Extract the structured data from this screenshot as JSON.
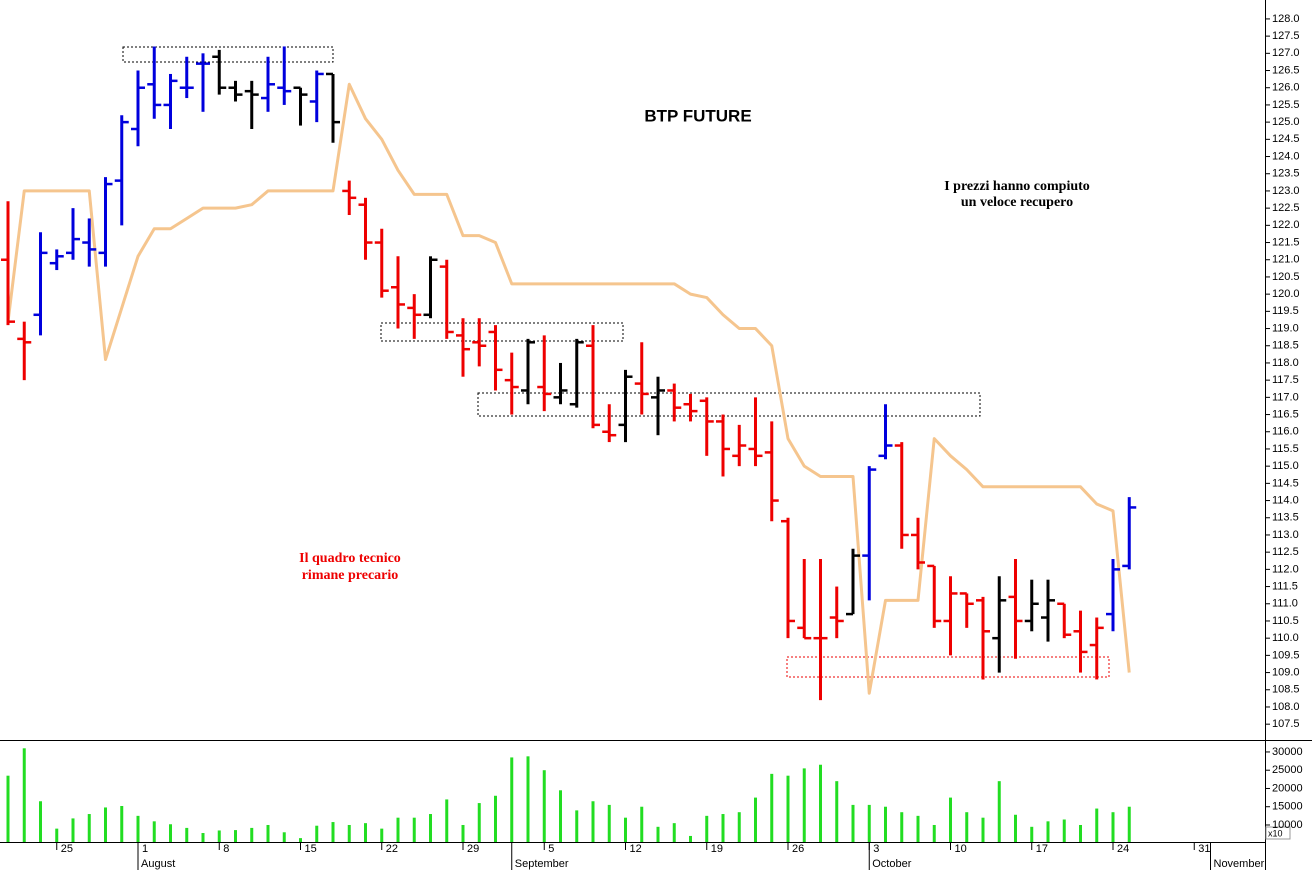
{
  "chart_data": [
    {
      "type": "ohlc",
      "title": "BTP FUTURE",
      "annotations": [
        [
          "I prezzi hanno compiuto",
          "un veloce recupero"
        ],
        [
          "Il quadro tecnico",
          "rimane precario"
        ]
      ],
      "open": [
        121.0,
        118.7,
        119.4,
        120.9,
        121.2,
        121.5,
        121.2,
        123.3,
        124.8,
        126.1,
        125.5,
        126.0,
        126.7,
        126.9,
        126.0,
        125.9,
        125.7,
        126.0,
        126.0,
        125.6,
        126.4,
        123.0,
        122.6,
        121.5,
        120.2,
        119.6,
        119.4,
        120.8,
        118.8,
        118.6,
        118.9,
        117.5,
        117.2,
        117.3,
        117.0,
        116.8,
        118.5,
        116.0,
        116.2,
        117.4,
        117.0,
        117.2,
        116.8,
        116.9,
        116.3,
        115.3,
        115.5,
        115.4,
        113.4,
        110.3,
        110.0,
        110.6,
        110.7,
        112.4,
        115.3,
        115.6,
        113.0,
        112.1,
        110.5,
        111.3,
        111.1,
        110.0,
        111.2,
        110.5,
        110.6,
        111.0,
        110.2,
        109.8,
        110.7,
        112.1,
        null,
        null,
        null,
        null,
        null,
        null,
        null,
        null
      ],
      "high": [
        122.7,
        119.2,
        121.8,
        121.3,
        122.5,
        122.2,
        123.4,
        125.2,
        126.5,
        127.2,
        126.4,
        126.9,
        127.0,
        127.1,
        126.2,
        126.2,
        126.9,
        127.2,
        126.0,
        126.5,
        126.4,
        123.3,
        122.8,
        121.9,
        121.1,
        120.0,
        121.1,
        121.0,
        119.3,
        119.3,
        119.1,
        118.3,
        118.7,
        118.8,
        118.0,
        118.7,
        119.1,
        116.8,
        117.8,
        118.6,
        117.6,
        117.4,
        117.1,
        117.0,
        116.5,
        116.2,
        117.0,
        116.3,
        113.5,
        112.3,
        112.3,
        111.5,
        112.6,
        115.0,
        116.8,
        115.7,
        113.5,
        112.1,
        111.8,
        111.3,
        111.2,
        111.8,
        112.3,
        111.7,
        111.7,
        111.0,
        110.8,
        110.6,
        112.3,
        114.1,
        null,
        null,
        null,
        null,
        null,
        null,
        null,
        null
      ],
      "low": [
        119.1,
        117.5,
        118.8,
        120.7,
        121.0,
        120.8,
        120.8,
        122.0,
        124.3,
        125.1,
        124.8,
        125.7,
        125.3,
        125.8,
        125.6,
        124.8,
        125.3,
        125.5,
        124.9,
        125.0,
        124.4,
        122.3,
        121.0,
        119.9,
        119.0,
        118.7,
        119.3,
        118.7,
        117.6,
        117.9,
        117.2,
        116.5,
        116.8,
        116.6,
        116.8,
        116.7,
        116.1,
        115.7,
        115.7,
        116.5,
        115.9,
        116.3,
        116.3,
        115.3,
        114.7,
        115.0,
        115.0,
        113.4,
        110.0,
        110.0,
        108.2,
        110.0,
        110.7,
        111.1,
        115.2,
        112.6,
        112.0,
        110.3,
        109.5,
        110.3,
        108.8,
        109.0,
        109.4,
        110.2,
        109.9,
        110.0,
        109.0,
        108.8,
        110.2,
        112.0,
        null,
        null,
        null,
        null,
        null,
        null,
        null,
        null
      ],
      "close": [
        119.2,
        118.6,
        121.2,
        121.1,
        121.6,
        121.3,
        123.2,
        125.0,
        126.0,
        125.5,
        126.2,
        126.0,
        126.7,
        126.0,
        125.8,
        125.8,
        126.1,
        125.9,
        125.8,
        126.4,
        125.0,
        122.8,
        121.5,
        120.1,
        119.7,
        119.4,
        121.0,
        118.9,
        118.4,
        118.5,
        117.8,
        117.3,
        118.6,
        117.1,
        117.2,
        118.6,
        116.2,
        115.9,
        117.6,
        117.1,
        117.2,
        116.7,
        116.6,
        116.3,
        115.5,
        115.6,
        115.3,
        114.0,
        110.5,
        110.0,
        110.0,
        110.5,
        112.4,
        114.9,
        115.6,
        113.0,
        112.2,
        110.5,
        111.3,
        111.0,
        110.2,
        111.1,
        110.5,
        111.0,
        111.1,
        110.1,
        109.6,
        110.3,
        112.0,
        113.8,
        null,
        null,
        null,
        null,
        null,
        null,
        null,
        null
      ],
      "bar_colors": [
        "#ee0000",
        "#ee0000",
        "#0000dd",
        "#0000dd",
        "#0000dd",
        "#0000dd",
        "#0000dd",
        "#0000dd",
        "#0000dd",
        "#0000dd",
        "#0000dd",
        "#0000dd",
        "#0000dd",
        "#000000",
        "#000000",
        "#000000",
        "#0000dd",
        "#0000dd",
        "#000000",
        "#0000dd",
        "#000000",
        "#ee0000",
        "#ee0000",
        "#ee0000",
        "#ee0000",
        "#ee0000",
        "#000000",
        "#ee0000",
        "#ee0000",
        "#ee0000",
        "#ee0000",
        "#ee0000",
        "#000000",
        "#ee0000",
        "#000000",
        "#000000",
        "#ee0000",
        "#ee0000",
        "#000000",
        "#ee0000",
        "#000000",
        "#ee0000",
        "#ee0000",
        "#ee0000",
        "#ee0000",
        "#ee0000",
        "#ee0000",
        "#ee0000",
        "#ee0000",
        "#ee0000",
        "#ee0000",
        "#ee0000",
        "#000000",
        "#0000dd",
        "#0000dd",
        "#ee0000",
        "#ee0000",
        "#ee0000",
        "#ee0000",
        "#ee0000",
        "#ee0000",
        "#000000",
        "#ee0000",
        "#000000",
        "#000000",
        "#ee0000",
        "#ee0000",
        "#ee0000",
        "#0000dd",
        "#0000dd",
        null,
        null,
        null,
        null,
        null,
        null,
        null,
        null
      ],
      "overlay": {
        "color": "#f5c58e",
        "values": [
          119.2,
          123.0,
          123.0,
          123.0,
          123.0,
          123.0,
          118.1,
          119.6,
          121.1,
          121.9,
          121.9,
          122.2,
          122.5,
          122.5,
          122.5,
          122.6,
          123.0,
          123.0,
          123.0,
          123.0,
          123.0,
          126.1,
          125.1,
          124.5,
          123.6,
          122.9,
          122.9,
          122.9,
          121.7,
          121.7,
          121.5,
          120.3,
          120.3,
          120.3,
          120.3,
          120.3,
          120.3,
          120.3,
          120.3,
          120.3,
          120.3,
          120.3,
          120.0,
          119.9,
          119.4,
          119.0,
          119.0,
          118.5,
          115.8,
          115.0,
          114.7,
          114.7,
          114.7,
          108.4,
          111.1,
          111.1,
          111.1,
          115.8,
          115.3,
          114.9,
          114.4,
          114.4,
          114.4,
          114.4,
          114.4,
          114.4,
          114.4,
          113.9,
          113.7,
          109.0,
          null,
          null,
          null,
          null,
          null,
          null,
          null,
          null
        ]
      },
      "ylim": [
        107.04,
        128.55
      ],
      "yticks": [
        107.5,
        {
          "value": 108,
          "label": "108.0"
        },
        108.5,
        {
          "value": 109,
          "label": "109.0"
        },
        109.5,
        {
          "value": 110,
          "label": "110.0"
        },
        110.5,
        {
          "value": 111,
          "label": "111.0"
        },
        111.5,
        {
          "value": 112,
          "label": "112.0"
        },
        112.5,
        {
          "value": 113,
          "label": "113.0"
        },
        113.5,
        {
          "value": 114,
          "label": "114.0"
        },
        114.5,
        {
          "value": 115,
          "label": "115.0"
        },
        115.5,
        {
          "value": 116,
          "label": "116.0"
        },
        116.5,
        {
          "value": 117,
          "label": "117.0"
        },
        117.5,
        {
          "value": 118,
          "label": "118.0"
        },
        118.5,
        {
          "value": 119,
          "label": "119.0"
        },
        119.5,
        {
          "value": 120,
          "label": "120.0"
        },
        120.5,
        {
          "value": 121,
          "label": "121.0"
        },
        121.5,
        {
          "value": 122,
          "label": "122.0"
        },
        122.5,
        {
          "value": 123,
          "label": "123.0"
        },
        123.5,
        {
          "value": 124,
          "label": "124.0"
        },
        124.5,
        {
          "value": 125,
          "label": "125.0"
        },
        125.5,
        {
          "value": 126,
          "label": "126.0"
        },
        126.5,
        {
          "value": 127,
          "label": "127.0"
        },
        127.5,
        {
          "value": 128,
          "label": "128.0"
        }
      ]
    },
    {
      "type": "bar",
      "color": "#22dd22",
      "units_label": "x10",
      "categories": [
        null,
        null,
        null,
        "25",
        null,
        null,
        null,
        null,
        "1",
        null,
        null,
        null,
        null,
        "8",
        null,
        null,
        null,
        null,
        "15",
        null,
        null,
        null,
        null,
        "22",
        null,
        null,
        null,
        null,
        "29",
        null,
        null,
        null,
        null,
        "5",
        null,
        null,
        null,
        null,
        "12",
        null,
        null,
        null,
        null,
        "19",
        null,
        null,
        null,
        null,
        "26",
        null,
        null,
        null,
        null,
        "3",
        null,
        null,
        null,
        null,
        "10",
        null,
        null,
        null,
        null,
        "17",
        null,
        null,
        null,
        null,
        "24",
        null,
        null,
        null,
        null,
        "31",
        null,
        null,
        null,
        null
      ],
      "months": [
        null,
        null,
        null,
        null,
        null,
        null,
        null,
        null,
        "August",
        null,
        null,
        null,
        null,
        null,
        null,
        null,
        null,
        null,
        null,
        null,
        null,
        null,
        null,
        null,
        null,
        null,
        null,
        null,
        null,
        null,
        null,
        "September",
        null,
        null,
        null,
        null,
        null,
        null,
        null,
        null,
        null,
        null,
        null,
        null,
        null,
        null,
        null,
        null,
        null,
        null,
        null,
        null,
        null,
        "October",
        null,
        null,
        null,
        null,
        null,
        null,
        null,
        null,
        null,
        null,
        null,
        null,
        null,
        null,
        null,
        null,
        null,
        null,
        null,
        null,
        "November",
        null,
        null,
        null
      ],
      "values": [
        23500,
        31000,
        16500,
        9000,
        11800,
        13000,
        14800,
        15200,
        12500,
        11000,
        10200,
        9200,
        7800,
        8500,
        8600,
        9200,
        10000,
        8000,
        6400,
        9800,
        10800,
        10000,
        10500,
        9000,
        12000,
        12000,
        13000,
        17000,
        10000,
        16000,
        18000,
        28500,
        28800,
        25000,
        19500,
        14000,
        16500,
        15500,
        12000,
        15000,
        9500,
        10500,
        7000,
        12500,
        13000,
        13500,
        17500,
        24000,
        23500,
        25500,
        26500,
        22000,
        15500,
        15500,
        15000,
        13500,
        12500,
        10000,
        17500,
        13500,
        12000,
        22000,
        12800,
        9500,
        11000,
        11500,
        10000,
        14500,
        13500,
        15000,
        null,
        null,
        null,
        null,
        null,
        null,
        null,
        null
      ],
      "ylim": [
        5340,
        33000
      ],
      "yticks": [
        10000,
        15000,
        20000,
        25000,
        30000
      ]
    }
  ]
}
